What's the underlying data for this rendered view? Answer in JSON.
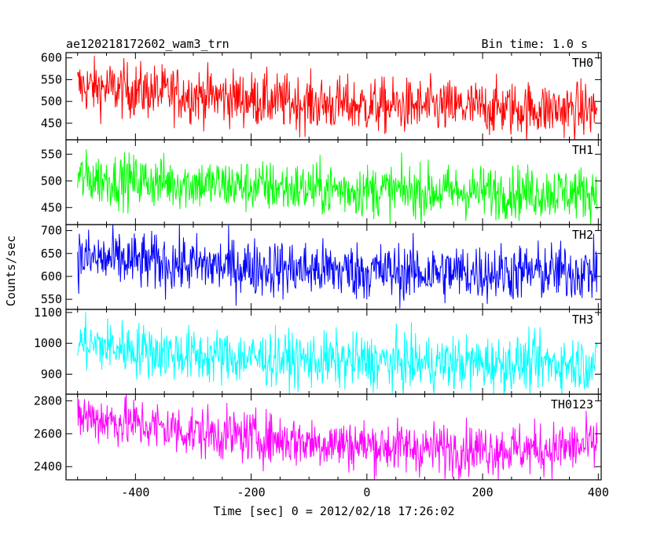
{
  "header": {
    "title": "ae120218172602_wam3_trn",
    "bin_time": "Bin time: 1.0 s"
  },
  "chart_data": {
    "type": "line",
    "xlabel": "Time [sec] 0 = 2012/02/18 17:26:02",
    "ylabel": "Counts/sec",
    "xlim": [
      -520,
      405
    ],
    "x_ticks": [
      -400,
      -200,
      0,
      200,
      400
    ],
    "panels": [
      {
        "name": "TH0",
        "color": "#ff0000",
        "ylim": [
          412,
          612
        ],
        "y_ticks": [
          450,
          500,
          550,
          600
        ],
        "trend": [
          [
            -500,
            535
          ],
          [
            -300,
            515
          ],
          [
            -100,
            495
          ],
          [
            0,
            490
          ],
          [
            400,
            480
          ]
        ],
        "noise": 32
      },
      {
        "name": "TH1",
        "color": "#00ff00",
        "ylim": [
          418,
          577
        ],
        "y_ticks": [
          450,
          500,
          550
        ],
        "trend": [
          [
            -500,
            505
          ],
          [
            -300,
            495
          ],
          [
            -100,
            485
          ],
          [
            100,
            480
          ],
          [
            400,
            478
          ]
        ],
        "noise": 25
      },
      {
        "name": "TH2",
        "color": "#0000ff",
        "ylim": [
          528,
          713
        ],
        "y_ticks": [
          550,
          600,
          650,
          700
        ],
        "trend": [
          [
            -500,
            640
          ],
          [
            -300,
            625
          ],
          [
            -100,
            615
          ],
          [
            100,
            608
          ],
          [
            400,
            610
          ]
        ],
        "noise": 32
      },
      {
        "name": "TH3",
        "color": "#00ffff",
        "ylim": [
          835,
          1110
        ],
        "y_ticks": [
          900,
          1000,
          1100
        ],
        "trend": [
          [
            -500,
            1000
          ],
          [
            -300,
            960
          ],
          [
            -100,
            945
          ],
          [
            100,
            935
          ],
          [
            400,
            935
          ]
        ],
        "noise": 45
      },
      {
        "name": "TH0123",
        "color": "#ff00ff",
        "ylim": [
          2320,
          2840
        ],
        "y_ticks": [
          2400,
          2600,
          2800
        ],
        "trend": [
          [
            -500,
            2710
          ],
          [
            -300,
            2610
          ],
          [
            -100,
            2550
          ],
          [
            100,
            2510
          ],
          [
            300,
            2505
          ],
          [
            400,
            2530
          ]
        ],
        "noise": 80
      }
    ]
  }
}
